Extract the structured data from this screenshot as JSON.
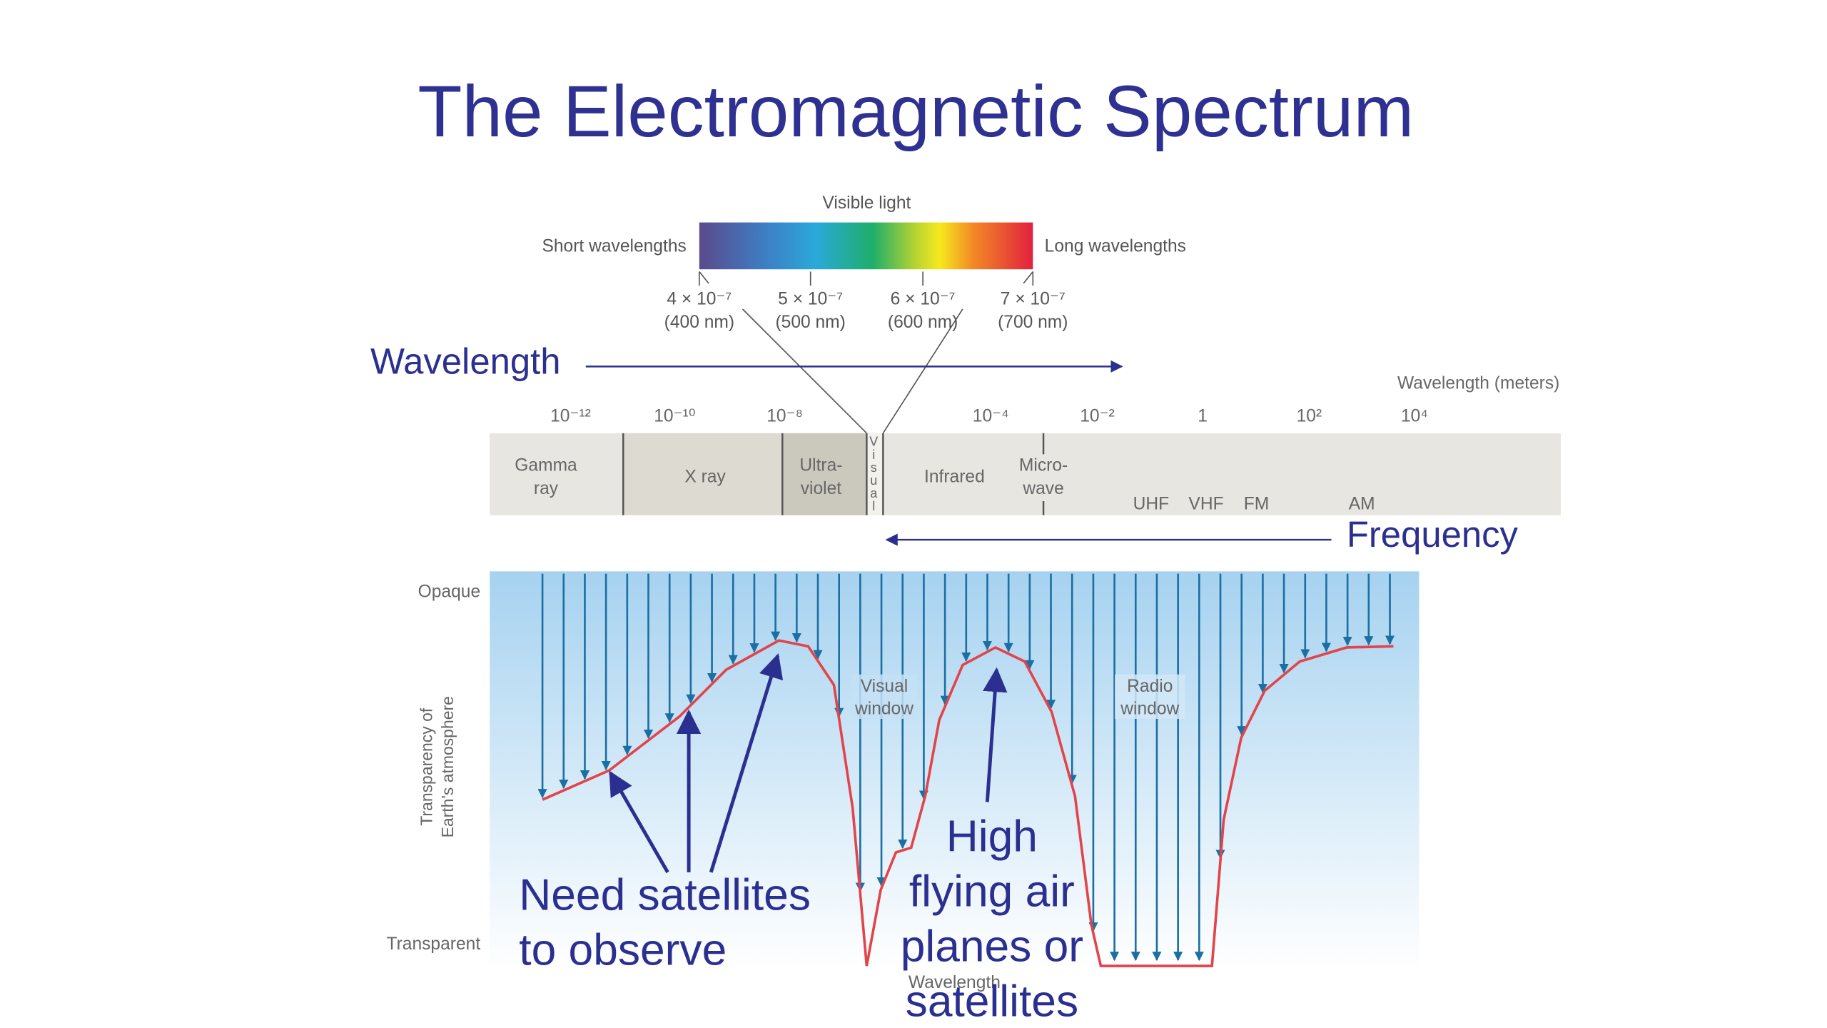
{
  "title": "The Electromagnetic Spectrum",
  "visible_light": {
    "label": "Visible light",
    "short": "Short wavelengths",
    "long": "Long wavelengths",
    "ticks": [
      {
        "power": "4 × 10⁻⁷",
        "nm": "(400 nm)"
      },
      {
        "power": "5 × 10⁻⁷",
        "nm": "(500 nm)"
      },
      {
        "power": "6 × 10⁻⁷",
        "nm": "(600 nm)"
      },
      {
        "power": "7 × 10⁻⁷",
        "nm": "(700 nm)"
      }
    ]
  },
  "wavelength_arrow": "Wavelength",
  "frequency_arrow": "Frequency",
  "scale": {
    "title": "Wavelength (meters)",
    "ticks": [
      "10⁻¹²",
      "10⁻¹⁰",
      "10⁻⁸",
      "10⁻⁴",
      "10⁻²",
      "1",
      "10²",
      "10⁴"
    ]
  },
  "bands": [
    {
      "lines": [
        "Gamma",
        "ray"
      ]
    },
    {
      "lines": [
        "X ray"
      ]
    },
    {
      "lines": [
        "Ultra-",
        "violet"
      ]
    },
    {
      "lines": [
        "V",
        "i",
        "s",
        "u",
        "a",
        "l"
      ]
    },
    {
      "lines": [
        "Infrared"
      ]
    },
    {
      "lines": [
        "Micro-",
        "wave"
      ]
    },
    {
      "lines": [
        "UHF"
      ]
    },
    {
      "lines": [
        "VHF"
      ]
    },
    {
      "lines": [
        "FM"
      ]
    },
    {
      "lines": [
        "AM"
      ]
    }
  ],
  "transparency": {
    "opaque": "Opaque",
    "transparent": "Transparent",
    "axis": [
      "Transparency of",
      "Earth's atmosphere"
    ],
    "visual_window": [
      "Visual",
      "window"
    ],
    "radio_window": [
      "Radio",
      "window"
    ],
    "x_axis": "Wavelength"
  },
  "annotations": [
    {
      "lines": [
        "Need satellites",
        "to observe"
      ]
    },
    {
      "lines": [
        "High",
        "flying air",
        "planes or",
        "satellites"
      ]
    }
  ]
}
